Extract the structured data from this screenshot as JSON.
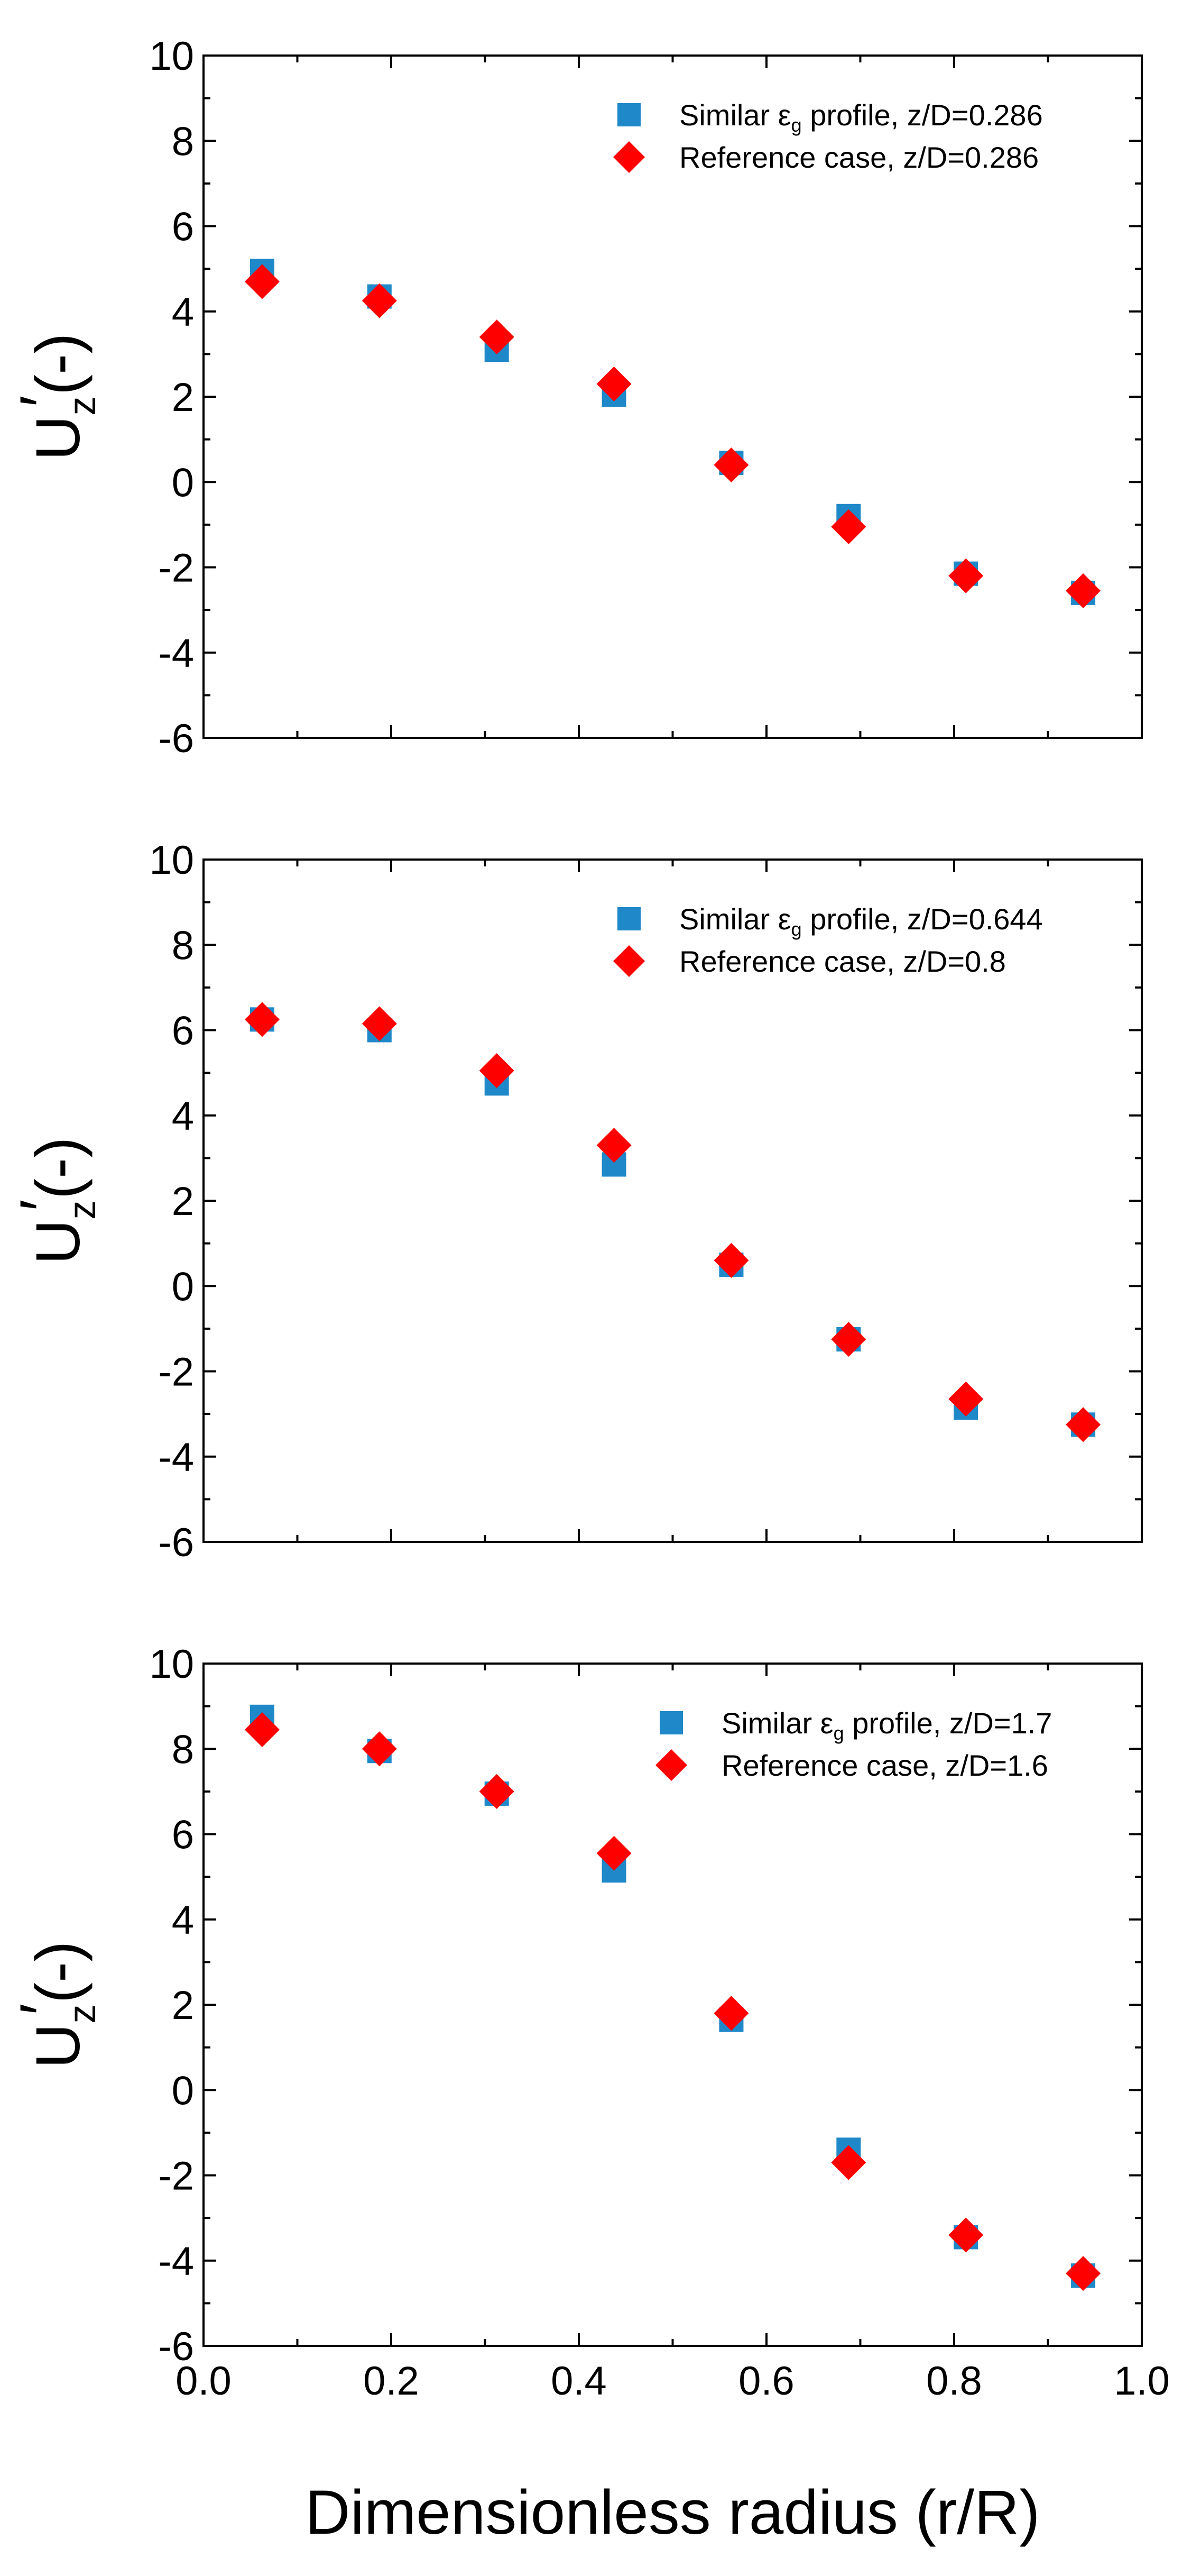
{
  "colors": {
    "similar": "#1f88c9",
    "reference": "#ff0000",
    "axis": "#000000"
  },
  "x_axis": {
    "label": "Dimensionless radius (r/R)",
    "ticks": [
      "0.0",
      "0.2",
      "0.4",
      "0.6",
      "0.8",
      "1.0"
    ]
  },
  "y_axis": {
    "label_main": "U",
    "label_sub": "z",
    "label_prime": "′",
    "label_unit": "(-)",
    "ticks": [
      "-6",
      "-4",
      "-2",
      "0",
      "2",
      "4",
      "6",
      "8",
      "10"
    ]
  },
  "chart_data": [
    {
      "type": "scatter",
      "xlim": [
        0.0,
        1.0
      ],
      "ylim": [
        -6,
        10
      ],
      "x_ticks": [
        0.0,
        0.2,
        0.4,
        0.6,
        0.8,
        1.0
      ],
      "y_ticks": [
        -6,
        -4,
        -2,
        0,
        2,
        4,
        6,
        8,
        10
      ],
      "legend_position": "top-right",
      "series": [
        {
          "name": "Similar εg profile, z/D=0.286",
          "legend": {
            "pre": "Similar ε",
            "sub": "g",
            "post": " profile, z/D=0.286"
          },
          "marker": "square",
          "x": [
            0.0625,
            0.1875,
            0.3125,
            0.4375,
            0.5625,
            0.6875,
            0.8125,
            0.9375
          ],
          "y": [
            4.95,
            4.35,
            3.1,
            2.05,
            0.45,
            -0.8,
            -2.15,
            -2.6
          ]
        },
        {
          "name": "Reference case, z/D=0.286",
          "legend": {
            "pre": "Reference case, z/D=0.286",
            "sub": "",
            "post": ""
          },
          "marker": "diamond",
          "x": [
            0.0625,
            0.1875,
            0.3125,
            0.4375,
            0.5625,
            0.6875,
            0.8125,
            0.9375
          ],
          "y": [
            4.7,
            4.25,
            3.4,
            2.3,
            0.4,
            -1.05,
            -2.2,
            -2.55
          ]
        }
      ]
    },
    {
      "type": "scatter",
      "xlim": [
        0.0,
        1.0
      ],
      "ylim": [
        -6,
        10
      ],
      "x_ticks": [
        0.0,
        0.2,
        0.4,
        0.6,
        0.8,
        1.0
      ],
      "y_ticks": [
        -6,
        -4,
        -2,
        0,
        2,
        4,
        6,
        8,
        10
      ],
      "legend_position": "top-right",
      "series": [
        {
          "name": "Similar εg profile, z/D=0.644",
          "legend": {
            "pre": "Similar ε",
            "sub": "g",
            "post": " profile, z/D=0.644"
          },
          "marker": "square",
          "x": [
            0.0625,
            0.1875,
            0.3125,
            0.4375,
            0.5625,
            0.6875,
            0.8125,
            0.9375
          ],
          "y": [
            6.25,
            6.0,
            4.75,
            2.85,
            0.5,
            -1.25,
            -2.85,
            -3.25
          ]
        },
        {
          "name": "Reference case, z/D=0.8",
          "legend": {
            "pre": "Reference case, z/D=0.8",
            "sub": "",
            "post": ""
          },
          "marker": "diamond",
          "x": [
            0.0625,
            0.1875,
            0.3125,
            0.4375,
            0.5625,
            0.6875,
            0.8125,
            0.9375
          ],
          "y": [
            6.25,
            6.15,
            5.05,
            3.3,
            0.6,
            -1.25,
            -2.65,
            -3.25
          ]
        }
      ]
    },
    {
      "type": "scatter",
      "xlim": [
        0.0,
        1.0
      ],
      "ylim": [
        -6,
        10
      ],
      "x_ticks": [
        0.0,
        0.2,
        0.4,
        0.6,
        0.8,
        1.0
      ],
      "y_ticks": [
        -6,
        -4,
        -2,
        0,
        2,
        4,
        6,
        8,
        10
      ],
      "legend_position": "top-right",
      "series": [
        {
          "name": "Similar εg profile, z/D=1.7",
          "legend": {
            "pre": "Similar ε",
            "sub": "g",
            "post": " profile, z/D=1.7"
          },
          "marker": "square",
          "x": [
            0.0625,
            0.1875,
            0.3125,
            0.4375,
            0.5625,
            0.6875,
            0.8125,
            0.9375
          ],
          "y": [
            8.75,
            7.95,
            6.95,
            5.15,
            1.65,
            -1.4,
            -3.45,
            -4.35
          ]
        },
        {
          "name": "Reference case, z/D=1.6",
          "legend": {
            "pre": "Reference case, z/D=1.6",
            "sub": "",
            "post": ""
          },
          "marker": "diamond",
          "x": [
            0.0625,
            0.1875,
            0.3125,
            0.4375,
            0.5625,
            0.6875,
            0.8125,
            0.9375
          ],
          "y": [
            8.45,
            8.0,
            7.0,
            5.55,
            1.8,
            -1.7,
            -3.4,
            -4.3
          ]
        }
      ]
    }
  ]
}
